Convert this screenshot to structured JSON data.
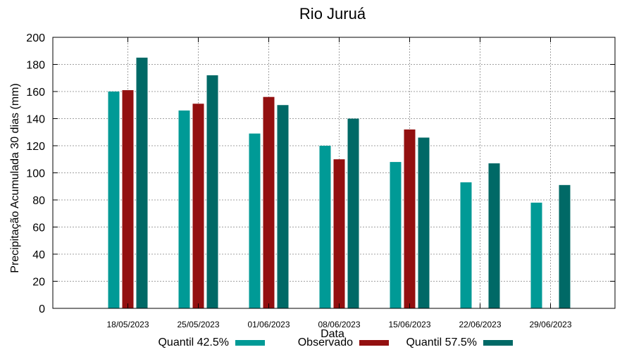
{
  "chart_data": {
    "type": "bar",
    "title": "Rio Juruá",
    "xlabel": "Data",
    "ylabel": "Precipitação Acumulada 30 dias (mm)",
    "ylim": [
      0,
      200
    ],
    "yticks": [
      0,
      20,
      40,
      60,
      80,
      100,
      120,
      140,
      160,
      180,
      200
    ],
    "grid": true,
    "legend_position": "bottom",
    "categories": [
      "18/05/2023",
      "25/05/2023",
      "01/06/2023",
      "08/06/2023",
      "15/06/2023",
      "22/06/2023",
      "29/06/2023"
    ],
    "series": [
      {
        "name": "Quantil 42.5%",
        "color": "#009a96",
        "values": [
          160,
          146,
          129,
          120,
          108,
          93,
          78
        ]
      },
      {
        "name": "Observado",
        "color": "#931010",
        "values": [
          161,
          151,
          156,
          110,
          132,
          null,
          null
        ]
      },
      {
        "name": "Quantil 57.5%",
        "color": "#006966",
        "values": [
          185,
          172,
          150,
          140,
          126,
          107,
          91
        ]
      }
    ]
  }
}
